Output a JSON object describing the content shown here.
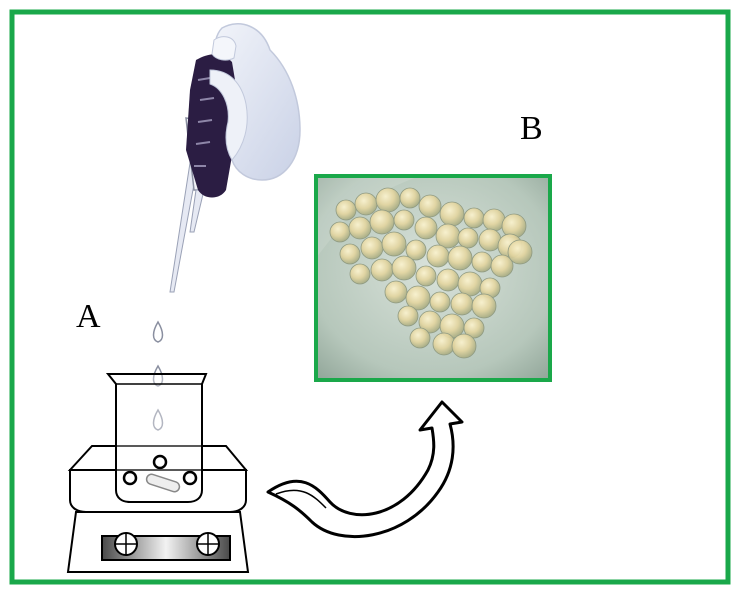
{
  "labels": {
    "a": "A",
    "b": "B"
  },
  "colors": {
    "frame_border": "#1aa84a",
    "photo_border": "#1aa84a",
    "photo_background": "#b9c9bd",
    "bead_fill": "#e3d5a0",
    "glove": "#dfe4f2",
    "pipette_grip": "#2b1d43",
    "arrow_fill": "#ffffff",
    "arrow_stroke": "#000000"
  },
  "icons": {
    "pipette": "gloved-hand-pipette-icon",
    "beaker": "beaker-icon",
    "stirrer": "hot-plate-stirrer-icon",
    "arrow": "curved-arrow-icon",
    "beads": "hydrogel-beads-photo"
  }
}
